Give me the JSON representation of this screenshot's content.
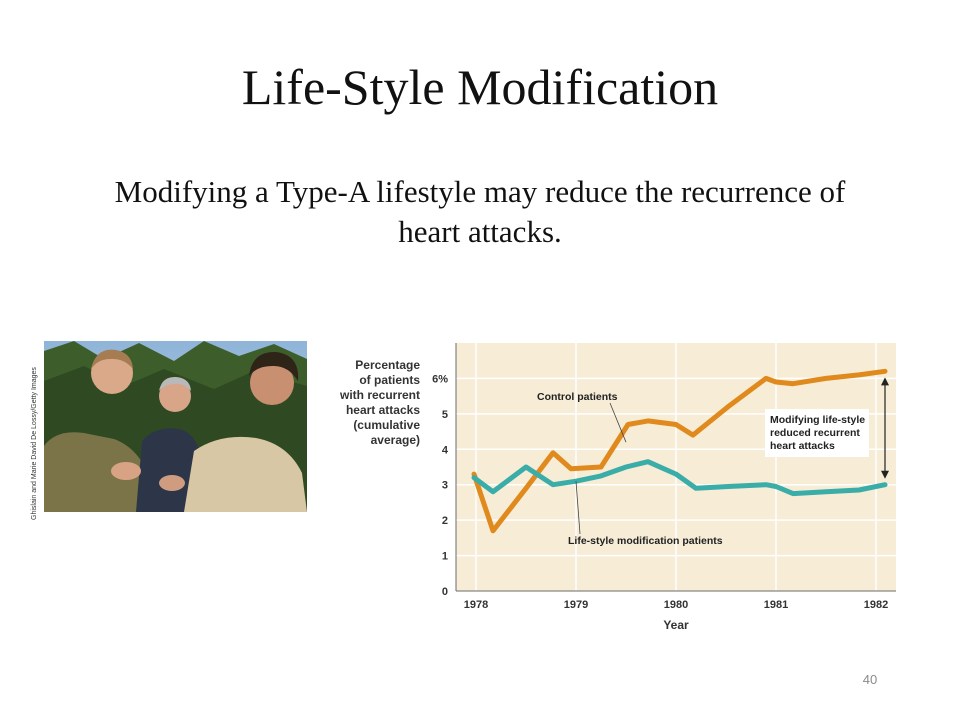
{
  "slide": {
    "title": "Life-Style Modification",
    "subtitle": "Modifying a Type-A lifestyle may reduce the recurrence of heart attacks.",
    "photo_credit": "Ghislain and Marie David De Lossy/Getty Images",
    "page_number": "40"
  },
  "colors": {
    "control": "#e08a1e",
    "lifestyle": "#3aada8",
    "plot_bg": "#f7ecd6",
    "grid": "#ffffff"
  },
  "chart_data": {
    "type": "line",
    "title": "",
    "ylabel_lines": [
      "Percentage",
      "of patients",
      "with recurrent",
      "heart attacks",
      "(cumulative",
      "average)"
    ],
    "xlabel": "Year",
    "x_ticks": [
      "1978",
      "1979",
      "1980",
      "1981",
      "1982"
    ],
    "y_ticks": [
      "0",
      "1",
      "2",
      "3",
      "4",
      "5",
      "6%"
    ],
    "xlim": [
      1977.8,
      1982.2
    ],
    "ylim": [
      0,
      7
    ],
    "grid": true,
    "annotation_lines": [
      "Modifying life-style",
      "reduced recurrent",
      "heart attacks"
    ],
    "series": [
      {
        "name": "Control patients",
        "x": [
          1977.98,
          1978.17,
          1978.5,
          1978.77,
          1978.95,
          1979.25,
          1979.52,
          1979.72,
          1980.0,
          1980.17,
          1980.52,
          1980.9,
          1981.0,
          1981.17,
          1981.5,
          1981.83,
          1982.09
        ],
        "values": [
          3.3,
          1.7,
          2.9,
          3.9,
          3.45,
          3.5,
          4.7,
          4.8,
          4.7,
          4.4,
          5.2,
          6.0,
          5.9,
          5.85,
          6.0,
          6.1,
          6.2
        ]
      },
      {
        "name": "Life-style modification patients",
        "x": [
          1977.98,
          1978.17,
          1978.5,
          1978.77,
          1979.0,
          1979.25,
          1979.5,
          1979.72,
          1980.0,
          1980.2,
          1980.52,
          1980.9,
          1981.0,
          1981.17,
          1981.5,
          1981.83,
          1982.09
        ],
        "values": [
          3.2,
          2.8,
          3.5,
          3.0,
          3.1,
          3.25,
          3.5,
          3.65,
          3.3,
          2.9,
          2.95,
          3.0,
          2.95,
          2.75,
          2.8,
          2.85,
          3.0
        ]
      }
    ]
  }
}
